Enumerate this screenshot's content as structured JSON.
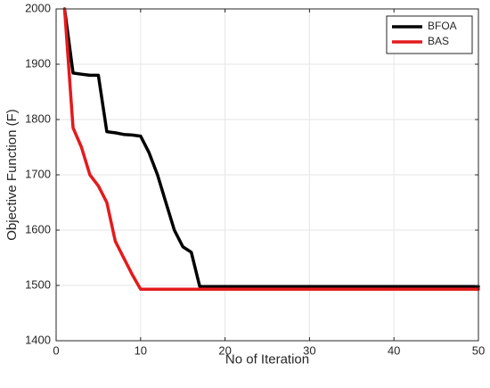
{
  "chart_data": {
    "type": "line",
    "xlabel": "No of Iteration",
    "ylabel": "Objective Function (F)",
    "xlim": [
      0,
      50
    ],
    "ylim": [
      1400,
      2000
    ],
    "xticks": [
      0,
      10,
      20,
      30,
      40,
      50
    ],
    "yticks": [
      1400,
      1500,
      1600,
      1700,
      1800,
      1900,
      2000
    ],
    "grid": true,
    "legend_position": "top-right",
    "series": [
      {
        "name": "BFOA",
        "color": "#000000",
        "x": [
          1,
          2,
          3,
          4,
          5,
          6,
          7,
          8,
          9,
          10,
          11,
          12,
          13,
          14,
          15,
          16,
          17,
          18,
          19,
          20,
          25,
          30,
          35,
          40,
          45,
          50
        ],
        "y": [
          2000,
          1884,
          1882,
          1880,
          1880,
          1778,
          1776,
          1773,
          1772,
          1770,
          1740,
          1700,
          1650,
          1600,
          1570,
          1560,
          1498,
          1498,
          1498,
          1498,
          1498,
          1498,
          1498,
          1498,
          1498,
          1498
        ]
      },
      {
        "name": "BAS",
        "color": "#e41a1c",
        "x": [
          1,
          2,
          3,
          4,
          5,
          6,
          7,
          8,
          9,
          10,
          15,
          20,
          25,
          30,
          35,
          40,
          45,
          50
        ],
        "y": [
          2000,
          1785,
          1750,
          1700,
          1680,
          1650,
          1580,
          1550,
          1520,
          1493,
          1493,
          1493,
          1493,
          1493,
          1493,
          1493,
          1493,
          1493
        ]
      }
    ]
  }
}
